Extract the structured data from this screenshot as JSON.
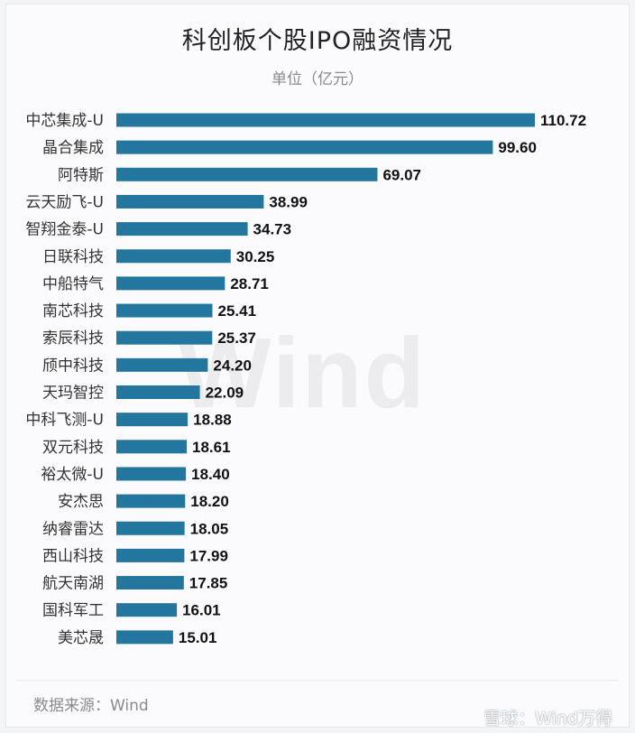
{
  "title": "科创板个股IPO融资情况",
  "subtitle": "单位（亿元）",
  "watermark": "Wind",
  "source": "数据来源：Wind",
  "brand": "雪球：Wind万得",
  "colors": {
    "bar": "#23769e",
    "label": "#111111",
    "category": "#333333"
  },
  "chart_data": {
    "type": "bar",
    "orientation": "horizontal",
    "title": "科创板个股IPO融资情况",
    "subtitle": "单位（亿元）",
    "xlabel": "",
    "ylabel": "",
    "xlim": [
      0,
      110.72
    ],
    "grid": false,
    "categories": [
      "中芯集成-U",
      "晶合集成",
      "阿特斯",
      "云天励飞-U",
      "智翔金泰-U",
      "日联科技",
      "中船特气",
      "南芯科技",
      "索辰科技",
      "颀中科技",
      "天玛智控",
      "中科飞测-U",
      "双元科技",
      "裕太微-U",
      "安杰思",
      "纳睿雷达",
      "西山科技",
      "航天南湖",
      "国科军工",
      "美芯晟"
    ],
    "values": [
      110.72,
      99.6,
      69.07,
      38.99,
      34.73,
      30.25,
      28.71,
      25.41,
      25.37,
      24.2,
      22.09,
      18.88,
      18.61,
      18.4,
      18.2,
      18.05,
      17.99,
      17.85,
      16.01,
      15.01
    ],
    "labels": [
      "110.72",
      "99.60",
      "69.07",
      "38.99",
      "34.73",
      "30.25",
      "28.71",
      "25.41",
      "25.37",
      "24.20",
      "22.09",
      "18.88",
      "18.61",
      "18.40",
      "18.20",
      "18.05",
      "17.99",
      "17.85",
      "16.01",
      "15.01"
    ]
  }
}
